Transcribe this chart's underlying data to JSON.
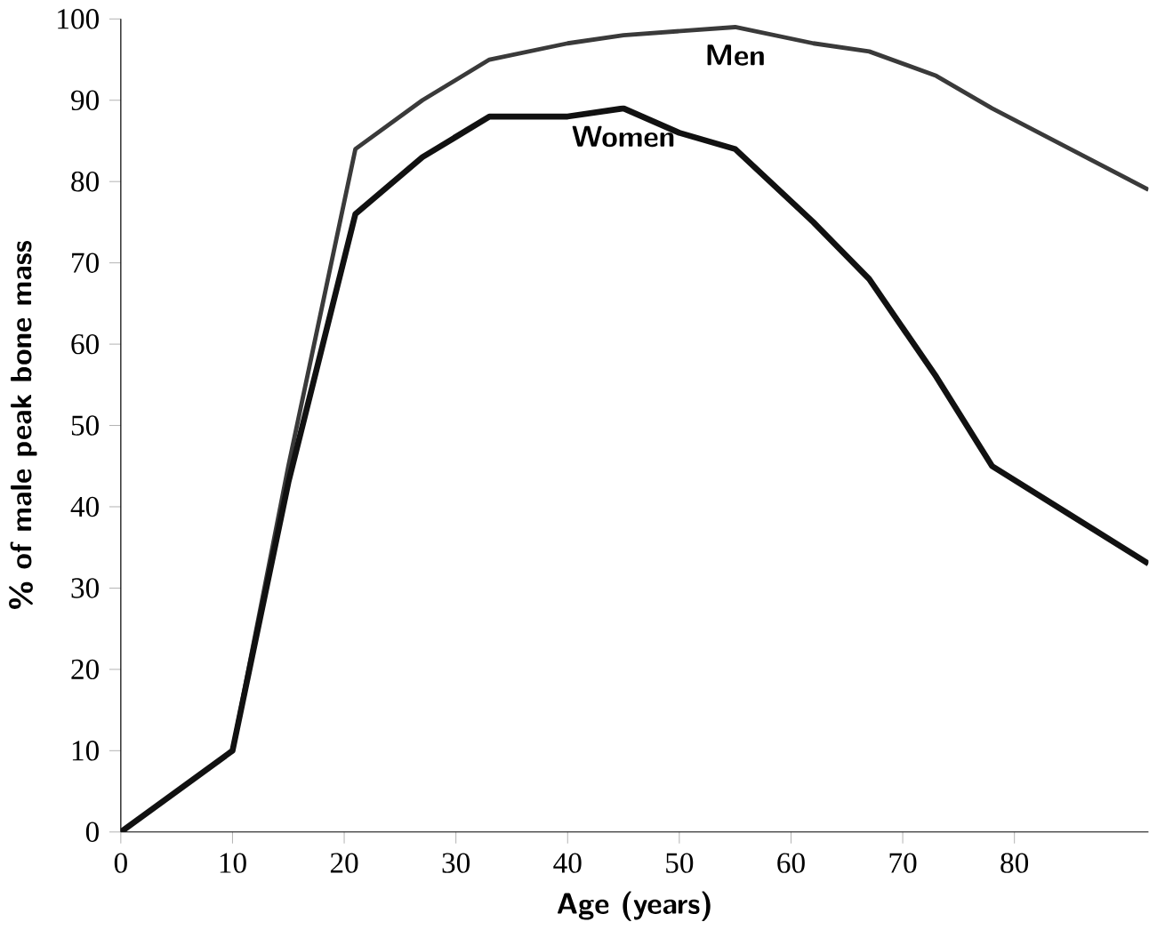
{
  "chart_data": {
    "type": "line",
    "xlabel": "Age (years)",
    "ylabel": "% of male peak bone mass",
    "xlim": [
      0,
      92
    ],
    "ylim": [
      0,
      100
    ],
    "xticks": [
      0,
      10,
      20,
      30,
      40,
      50,
      60,
      70,
      80
    ],
    "yticks": [
      0,
      10,
      20,
      30,
      40,
      50,
      60,
      70,
      80,
      90,
      100
    ],
    "grid": false,
    "marker": "none",
    "line_style": "solid",
    "series": [
      {
        "color": "#3a3a3a",
        "x": [
          0,
          5,
          10,
          15,
          21,
          27,
          33,
          40,
          45,
          55,
          62,
          67,
          73,
          78,
          85,
          92
        ],
        "values": [
          0,
          5,
          10,
          45,
          84,
          90,
          95,
          97,
          98,
          99,
          97,
          96,
          93,
          89,
          84,
          79
        ]
      },
      {
        "color": "#111111",
        "x": [
          0,
          5,
          10,
          15,
          21,
          27,
          33,
          40,
          45,
          50,
          55,
          62,
          67,
          73,
          78,
          85,
          92
        ],
        "values": [
          0,
          5,
          10,
          43,
          76,
          83,
          88,
          88,
          89,
          86,
          84,
          75,
          68,
          56,
          45,
          39,
          33
        ]
      }
    ],
    "annotations": [
      "Men",
      "Women"
    ]
  }
}
